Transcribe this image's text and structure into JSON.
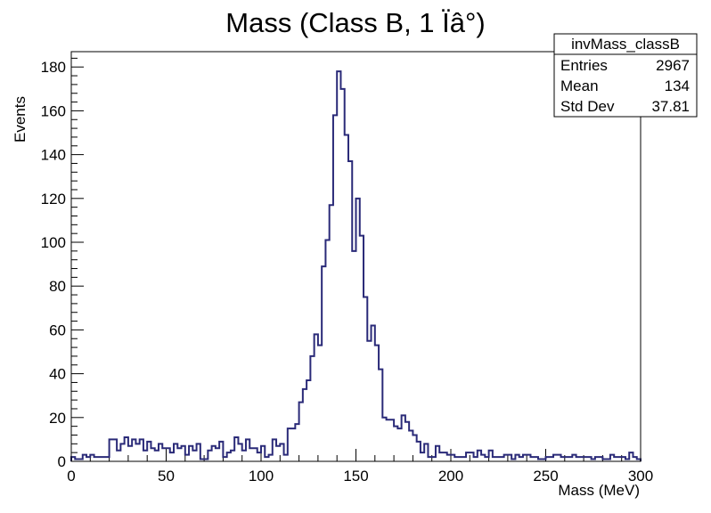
{
  "chart_data": {
    "type": "histogram",
    "title": "Mass (Class B, 1 Ïâ°)",
    "xlabel": "Mass (MeV)",
    "ylabel": "Events",
    "xlim": [
      0,
      300
    ],
    "ylim": [
      0,
      187
    ],
    "bin_width": 2,
    "x_ticks": [
      0,
      50,
      100,
      150,
      200,
      250,
      300
    ],
    "y_ticks": [
      0,
      20,
      40,
      60,
      80,
      100,
      120,
      140,
      160,
      180
    ],
    "grid": false,
    "line_color": "#2a2a78",
    "stats_box": {
      "name": "invMass_classB",
      "rows": [
        {
          "label": "Entries",
          "value": "2967"
        },
        {
          "label": "Mean",
          "value": "134"
        },
        {
          "label": "Std Dev",
          "value": "37.81"
        }
      ]
    },
    "values": [
      2,
      1,
      1,
      3,
      2,
      3,
      2,
      2,
      2,
      2,
      10,
      10,
      5,
      8,
      11,
      7,
      10,
      8,
      10,
      5,
      9,
      6,
      5,
      8,
      6,
      6,
      4,
      8,
      6,
      7,
      3,
      7,
      5,
      8,
      1,
      1,
      5,
      7,
      6,
      9,
      2,
      4,
      5,
      11,
      8,
      5,
      10,
      6,
      6,
      4,
      7,
      2,
      3,
      10,
      7,
      8,
      3,
      15,
      15,
      17,
      27,
      33,
      37,
      48,
      58,
      53,
      89,
      101,
      117,
      158,
      178,
      170,
      149,
      137,
      96,
      120,
      103,
      75,
      55,
      62,
      53,
      42,
      20,
      19,
      19,
      16,
      15,
      21,
      18,
      14,
      12,
      9,
      4,
      8,
      2,
      2,
      7,
      4,
      4,
      3,
      3,
      2,
      2,
      2,
      4,
      4,
      2,
      5,
      3,
      2,
      5,
      2,
      2,
      2,
      3,
      3,
      1,
      3,
      2,
      3,
      3,
      2,
      2,
      1,
      1,
      2,
      2,
      3,
      3,
      2,
      2,
      2,
      3,
      2,
      2,
      2,
      2,
      1,
      2,
      2,
      1,
      1,
      3,
      2,
      2,
      2,
      1,
      4,
      2,
      1
    ]
  }
}
